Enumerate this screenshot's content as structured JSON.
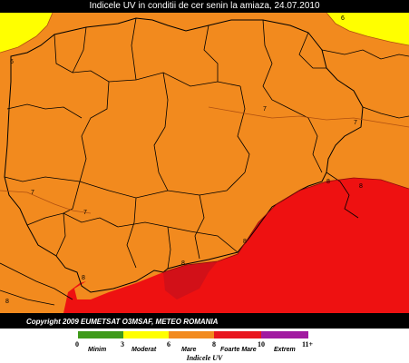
{
  "title": "Indicele UV in conditii de cer senin la amiaza,  24.07.2010",
  "copyright": "Copyright 2009 EUMETSAT O3MSAF, METEO  ROMANIA",
  "contour_labels": [
    "6",
    "6",
    "7",
    "7",
    "7",
    "8",
    "8",
    "8",
    "8",
    "8",
    "8",
    "7"
  ],
  "legend": {
    "title": "Indicele UV",
    "ticks": [
      "0",
      "3",
      "6",
      "8",
      "10",
      "11+"
    ],
    "categories": [
      {
        "label": "Minim",
        "color": "#3f9a1a"
      },
      {
        "label": "Moderat",
        "color": "#ffff00"
      },
      {
        "label": "Mare",
        "color": "#f28a1e"
      },
      {
        "label": "Foarte Mare",
        "color": "#e8161e"
      },
      {
        "label": "Extrem",
        "color": "#a11aa0"
      }
    ]
  },
  "colors": {
    "yellow": "#ffff00",
    "orange": "#f28a1e",
    "red": "#ee1111",
    "darkred": "#c8101c",
    "border": "#000000"
  }
}
